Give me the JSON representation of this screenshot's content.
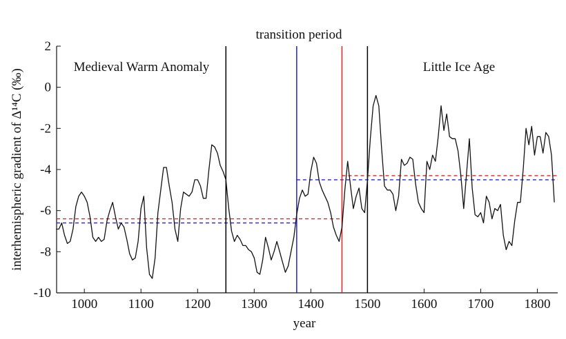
{
  "chart_data": {
    "type": "line",
    "annotations": [
      "transition period",
      "Medieval Warm Anomaly",
      "Little Ice Age"
    ],
    "xlabel": "year",
    "ylabel": "interhemispheric gradient of Δ¹⁴C (‰)",
    "xlim": [
      951,
      1836
    ],
    "ylim": [
      -10,
      2
    ],
    "xticks": [
      1000,
      1100,
      1200,
      1300,
      1400,
      1500,
      1600,
      1700,
      1800
    ],
    "yticks": [
      -10,
      -8,
      -6,
      -4,
      -2,
      0,
      2
    ],
    "vlines": [
      {
        "x": 1250,
        "color": "#000000"
      },
      {
        "x": 1375,
        "color": "#2020e0"
      },
      {
        "x": 1455,
        "color": "#e02020"
      },
      {
        "x": 1500,
        "color": "#000000"
      }
    ],
    "hlines": [
      {
        "y": -6.4,
        "x": [
          951,
          1455
        ],
        "color": "#e02020"
      },
      {
        "y": -6.6,
        "x": [
          951,
          1375
        ],
        "color": "#2020e0"
      },
      {
        "y": -4.3,
        "x": [
          1455,
          1836
        ],
        "color": "#e02020"
      },
      {
        "y": -4.5,
        "x": [
          1375,
          1836
        ],
        "color": "#2020e0"
      }
    ],
    "x": [
      950,
      955,
      960,
      965,
      970,
      975,
      980,
      985,
      990,
      995,
      1000,
      1005,
      1010,
      1015,
      1020,
      1025,
      1030,
      1035,
      1040,
      1045,
      1050,
      1055,
      1060,
      1065,
      1070,
      1075,
      1080,
      1085,
      1090,
      1095,
      1100,
      1105,
      1110,
      1115,
      1120,
      1125,
      1130,
      1135,
      1140,
      1145,
      1150,
      1155,
      1160,
      1165,
      1170,
      1175,
      1180,
      1185,
      1190,
      1195,
      1200,
      1205,
      1210,
      1215,
      1220,
      1225,
      1230,
      1235,
      1240,
      1245,
      1250,
      1255,
      1260,
      1265,
      1270,
      1275,
      1280,
      1285,
      1290,
      1295,
      1300,
      1305,
      1310,
      1315,
      1320,
      1325,
      1330,
      1335,
      1340,
      1345,
      1350,
      1355,
      1360,
      1365,
      1370,
      1375,
      1380,
      1385,
      1390,
      1395,
      1400,
      1405,
      1410,
      1415,
      1420,
      1425,
      1430,
      1435,
      1440,
      1445,
      1450,
      1455,
      1460,
      1465,
      1470,
      1475,
      1480,
      1485,
      1490,
      1495,
      1500,
      1505,
      1510,
      1515,
      1520,
      1525,
      1530,
      1535,
      1540,
      1545,
      1550,
      1555,
      1560,
      1565,
      1570,
      1575,
      1580,
      1585,
      1590,
      1595,
      1600,
      1605,
      1610,
      1615,
      1620,
      1625,
      1630,
      1635,
      1640,
      1645,
      1650,
      1655,
      1660,
      1665,
      1670,
      1675,
      1680,
      1685,
      1690,
      1695,
      1700,
      1705,
      1710,
      1715,
      1720,
      1725,
      1730,
      1735,
      1740,
      1745,
      1750,
      1755,
      1760,
      1765,
      1770,
      1775,
      1780,
      1785,
      1790,
      1795,
      1800,
      1805,
      1810,
      1815,
      1820,
      1825,
      1830
    ],
    "series": [
      {
        "color": "#111111",
        "values": [
          -6.9,
          -6.9,
          -6.6,
          -7.2,
          -7.6,
          -7.5,
          -6.9,
          -5.8,
          -5.3,
          -5.1,
          -5.3,
          -5.6,
          -6.3,
          -7.3,
          -7.5,
          -7.3,
          -7.5,
          -7.4,
          -6.5,
          -6.0,
          -5.6,
          -6.3,
          -6.9,
          -6.6,
          -6.8,
          -7.4,
          -8.1,
          -8.4,
          -8.3,
          -7.5,
          -5.9,
          -5.3,
          -7.8,
          -9.1,
          -9.3,
          -8.3,
          -6.1,
          -5.0,
          -3.9,
          -3.9,
          -4.8,
          -5.6,
          -6.9,
          -7.5,
          -5.9,
          -5.1,
          -5.2,
          -5.3,
          -5.1,
          -4.5,
          -4.5,
          -4.8,
          -5.4,
          -5.4,
          -4.0,
          -2.8,
          -2.9,
          -3.2,
          -3.8,
          -4.1,
          -4.5,
          -5.9,
          -7.0,
          -7.5,
          -7.2,
          -7.4,
          -7.7,
          -7.7,
          -7.9,
          -8.0,
          -8.3,
          -9.0,
          -9.1,
          -8.4,
          -7.3,
          -7.8,
          -8.4,
          -8.0,
          -7.5,
          -8.0,
          -8.5,
          -9.0,
          -8.7,
          -8.0,
          -7.3,
          -6.2,
          -5.4,
          -5.0,
          -5.3,
          -5.2,
          -4.1,
          -3.4,
          -3.7,
          -4.6,
          -5.0,
          -5.3,
          -5.6,
          -6.1,
          -6.8,
          -7.2,
          -7.5,
          -6.8,
          -5.0,
          -3.6,
          -4.8,
          -5.9,
          -5.3,
          -4.9,
          -5.9,
          -6.1,
          -4.5,
          -2.5,
          -0.9,
          -0.4,
          -0.9,
          -3.0,
          -4.8,
          -5.0,
          -5.0,
          -5.2,
          -6.0,
          -5.3,
          -3.5,
          -3.8,
          -3.7,
          -3.4,
          -3.5,
          -4.7,
          -5.6,
          -5.9,
          -6.1,
          -3.6,
          -4.0,
          -3.3,
          -3.6,
          -2.4,
          -0.9,
          -2.1,
          -1.3,
          -2.4,
          -2.5,
          -2.5,
          -3.1,
          -4.3,
          -5.9,
          -4.2,
          -2.5,
          -4.9,
          -6.2,
          -6.3,
          -6.1,
          -6.6,
          -5.3,
          -5.6,
          -6.4,
          -5.9,
          -6.0,
          -5.7,
          -7.2,
          -7.9,
          -7.5,
          -7.7,
          -6.5,
          -5.6,
          -5.6,
          -4.0,
          -2.0,
          -2.8,
          -1.9,
          -3.3,
          -2.4,
          -2.4,
          -3.2,
          -2.2,
          -2.4,
          -3.3,
          -5.6
        ]
      }
    ]
  }
}
